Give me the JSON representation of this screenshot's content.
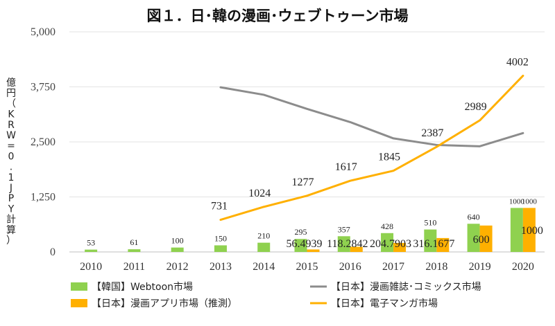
{
  "chart_data": {
    "type": "bar",
    "title": "図１．日･韓の漫画･ウェブトゥーン市場",
    "ylabel": "億円（KRW=0.1JPY計算）",
    "ylim": [
      0,
      5000
    ],
    "yticks": [
      "0",
      "1,250",
      "2,500",
      "3,750",
      "5,000"
    ],
    "ytick_values": [
      0,
      1250,
      2500,
      3750,
      5000
    ],
    "categories": [
      "2010",
      "2011",
      "2012",
      "2013",
      "2014",
      "2015",
      "2016",
      "2017",
      "2018",
      "2019",
      "2020"
    ],
    "grid": "horizontal",
    "legend_position": "bottom",
    "series": [
      {
        "name": "【韓国】Webtoon市場",
        "type": "bar",
        "color": "#8fd14f",
        "values": [
          53,
          61,
          100,
          150,
          210,
          295,
          357,
          428,
          510,
          640,
          1000
        ],
        "labels": [
          "53",
          "61",
          "100",
          "150",
          "210",
          "295",
          "357",
          "428",
          "510",
          "640",
          "1000"
        ]
      },
      {
        "name": "【日本】漫画アプリ市場（推測）",
        "type": "bar",
        "color": "#ffb000",
        "values": [
          null,
          null,
          null,
          null,
          null,
          56.4939,
          118.2842,
          204.7903,
          316.1677,
          600,
          1000
        ],
        "labels": [
          "",
          "",
          "",
          "",
          "",
          "56.4939",
          "118.2842",
          "204.7903",
          "316.1677",
          "600",
          "1000"
        ]
      },
      {
        "name": "【日本】漫画雑誌･コミックス市場",
        "type": "line",
        "color": "#8c8c8c",
        "values": [
          null,
          null,
          null,
          3740,
          3570,
          3250,
          2950,
          2580,
          2430,
          2400,
          2700
        ],
        "labels": []
      },
      {
        "name": "【日本】電子マンガ市場",
        "type": "line",
        "color": "#ffb000",
        "values": [
          null,
          null,
          null,
          731,
          1024,
          1277,
          1617,
          1845,
          2387,
          2989,
          4002
        ],
        "labels": [
          "",
          "",
          "",
          "731",
          "1024",
          "1277",
          "1617",
          "1845",
          "2387",
          "2989",
          "4002"
        ]
      }
    ]
  }
}
